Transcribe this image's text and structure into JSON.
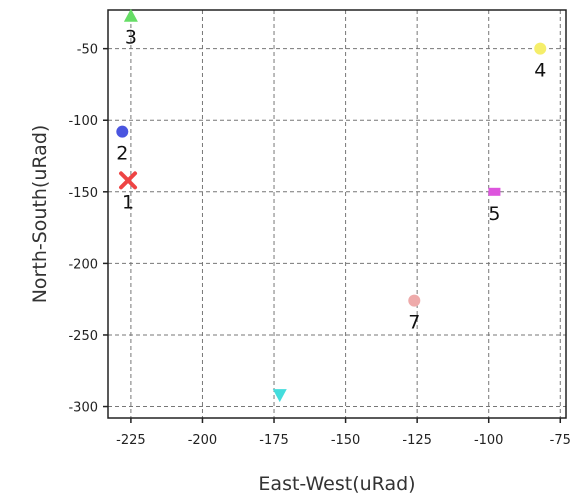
{
  "chart_data": {
    "type": "scatter",
    "xlabel": "East-West(uRad)",
    "ylabel": "North-South(uRad)",
    "xlim": [
      -233,
      -73
    ],
    "ylim": [
      -308,
      -23
    ],
    "x_ticks": [
      -225,
      -200,
      -175,
      -150,
      -125,
      -100,
      -75
    ],
    "y_ticks": [
      -50,
      -100,
      -150,
      -200,
      -250,
      -300
    ],
    "grid": true,
    "points": [
      {
        "label": "3",
        "x": -225,
        "y": -27,
        "marker": "triangle-up",
        "color": "#66dd66"
      },
      {
        "label": "2",
        "x": -228,
        "y": -108,
        "marker": "circle",
        "color": "#4a55e0"
      },
      {
        "label": "1",
        "x": -226,
        "y": -142,
        "marker": "x",
        "color": "#ee4444"
      },
      {
        "label": "4",
        "x": -82,
        "y": -50,
        "marker": "circle",
        "color": "#f5ee6a"
      },
      {
        "label": "5",
        "x": -98,
        "y": -150,
        "marker": "square",
        "color": "#dd55dd"
      },
      {
        "label": "7",
        "x": -126,
        "y": -226,
        "marker": "circle",
        "color": "#eeaaaa"
      },
      {
        "label": "",
        "x": -173,
        "y": -292,
        "marker": "triangle-down",
        "color": "#44dddd"
      }
    ]
  }
}
